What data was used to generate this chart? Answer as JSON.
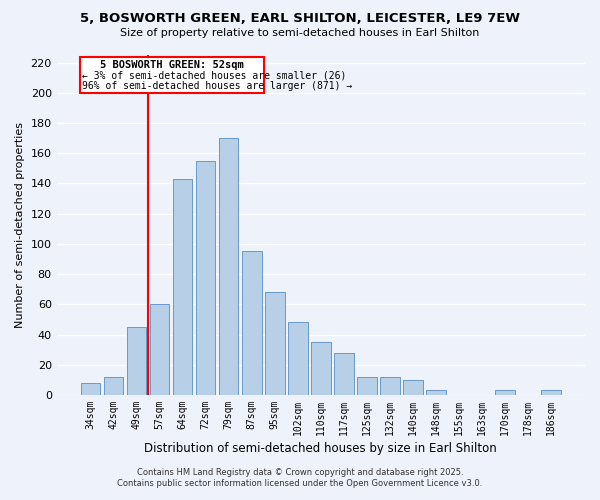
{
  "title": "5, BOSWORTH GREEN, EARL SHILTON, LEICESTER, LE9 7EW",
  "subtitle": "Size of property relative to semi-detached houses in Earl Shilton",
  "xlabel": "Distribution of semi-detached houses by size in Earl Shilton",
  "ylabel": "Number of semi-detached properties",
  "categories": [
    "34sqm",
    "42sqm",
    "49sqm",
    "57sqm",
    "64sqm",
    "72sqm",
    "79sqm",
    "87sqm",
    "95sqm",
    "102sqm",
    "110sqm",
    "117sqm",
    "125sqm",
    "132sqm",
    "140sqm",
    "148sqm",
    "155sqm",
    "163sqm",
    "170sqm",
    "178sqm",
    "186sqm"
  ],
  "values": [
    8,
    12,
    45,
    60,
    143,
    155,
    170,
    95,
    68,
    48,
    35,
    28,
    12,
    12,
    10,
    3,
    0,
    0,
    3,
    0,
    3
  ],
  "bar_color": "#b8cfe8",
  "bar_edge_color": "#6699cc",
  "red_line_index": 2.5,
  "annotation_title": "5 BOSWORTH GREEN: 52sqm",
  "annotation_line1": "← 3% of semi-detached houses are smaller (26)",
  "annotation_line2": "96% of semi-detached houses are larger (871) →",
  "ylim": [
    0,
    225
  ],
  "yticks": [
    0,
    20,
    40,
    60,
    80,
    100,
    120,
    140,
    160,
    180,
    200,
    220
  ],
  "background_color": "#eef2fb",
  "grid_color": "#ffffff",
  "footer_line1": "Contains HM Land Registry data © Crown copyright and database right 2025.",
  "footer_line2": "Contains public sector information licensed under the Open Government Licence v3.0."
}
